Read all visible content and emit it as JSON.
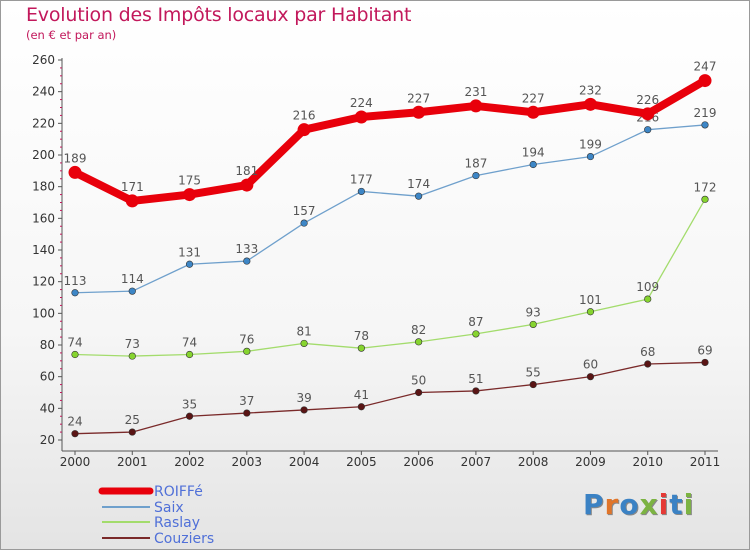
{
  "header": {
    "title": "Evolution des Impôts locaux par Habitant",
    "subtitle": "(en € et par an)"
  },
  "logo": {
    "text": "Proxiti",
    "letter_colors": [
      "#3b82c4",
      "#e0752a",
      "#3b82c4",
      "#7cb342",
      "#e53935",
      "#3b82c4",
      "#7cb342"
    ]
  },
  "chart_data": {
    "type": "line",
    "title": "Evolution des Impôts locaux par Habitant",
    "subtitle": "(en € et par an)",
    "x": [
      "2000",
      "2001",
      "2002",
      "2003",
      "2004",
      "2005",
      "2006",
      "2007",
      "2008",
      "2009",
      "2010",
      "2011"
    ],
    "ylim": [
      20,
      260
    ],
    "yticks": [
      20,
      40,
      60,
      80,
      100,
      120,
      140,
      160,
      180,
      200,
      220,
      240,
      260
    ],
    "grid": false,
    "legend_position": "bottom-left",
    "series": [
      {
        "name": "ROIFFé",
        "color": "#e8000b",
        "emphasis": true,
        "values": [
          189,
          171,
          175,
          181,
          216,
          224,
          227,
          231,
          227,
          232,
          226,
          247
        ]
      },
      {
        "name": "Saix",
        "color": "#6fa0cc",
        "marker_color": "#3d86c6",
        "emphasis": false,
        "values": [
          113,
          114,
          131,
          133,
          157,
          177,
          174,
          187,
          194,
          199,
          216,
          219
        ]
      },
      {
        "name": "Raslay",
        "color": "#a3dc6c",
        "marker_color": "#86d42f",
        "emphasis": false,
        "values": [
          74,
          73,
          74,
          76,
          81,
          78,
          82,
          87,
          93,
          101,
          109,
          172
        ]
      },
      {
        "name": "Couziers",
        "color": "#7a2a2a",
        "marker_color": "#5a1414",
        "emphasis": false,
        "values": [
          24,
          25,
          35,
          37,
          39,
          41,
          50,
          51,
          55,
          60,
          68,
          69
        ]
      }
    ]
  }
}
